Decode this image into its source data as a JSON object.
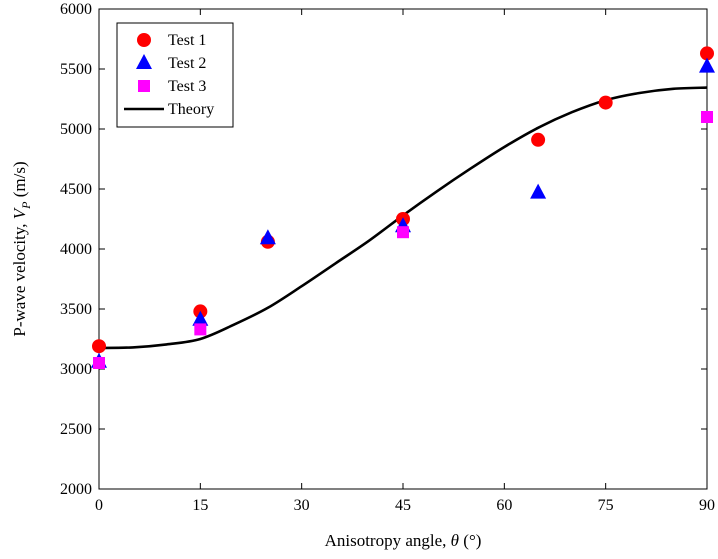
{
  "chart_data": {
    "type": "scatter",
    "xlabel": {
      "prefix": "Anisotropy angle, ",
      "symbol": "θ",
      "suffix": " (°)"
    },
    "ylabel": {
      "prefix": "P-wave velocity, ",
      "symbol": "V",
      "subscript": "P",
      "suffix": " (m/s)"
    },
    "xlim": [
      0,
      90
    ],
    "ylim": [
      2000,
      6000
    ],
    "xticks": [
      0,
      15,
      30,
      45,
      60,
      75,
      90
    ],
    "yticks": [
      2000,
      2500,
      3000,
      3500,
      4000,
      4500,
      5000,
      5500,
      6000
    ],
    "grid": false,
    "legend_position": "top-left",
    "series": [
      {
        "name": "Test 1",
        "marker": "circle",
        "color": "#ff0000",
        "x": [
          0,
          15,
          25,
          45,
          65,
          75,
          90
        ],
        "y": [
          3190,
          3480,
          4060,
          4250,
          4910,
          5220,
          5630
        ]
      },
      {
        "name": "Test 2",
        "marker": "triangle",
        "color": "#0000ff",
        "x": [
          0,
          15,
          25,
          45,
          65,
          90
        ],
        "y": [
          3060,
          3410,
          4090,
          4190,
          4470,
          5520
        ]
      },
      {
        "name": "Test 3",
        "marker": "square",
        "color": "#ff00ff",
        "x": [
          0,
          15,
          45,
          90
        ],
        "y": [
          3050,
          3330,
          4140,
          5100
        ]
      },
      {
        "name": "Theory",
        "marker": "line",
        "color": "#000000",
        "x": [
          0,
          5,
          10,
          15,
          20,
          25,
          30,
          35,
          40,
          45,
          50,
          55,
          60,
          65,
          70,
          75,
          80,
          85,
          90
        ],
        "y": [
          3175,
          3180,
          3205,
          3250,
          3370,
          3510,
          3690,
          3880,
          4070,
          4280,
          4480,
          4670,
          4850,
          5010,
          5140,
          5240,
          5300,
          5335,
          5345
        ]
      }
    ]
  }
}
